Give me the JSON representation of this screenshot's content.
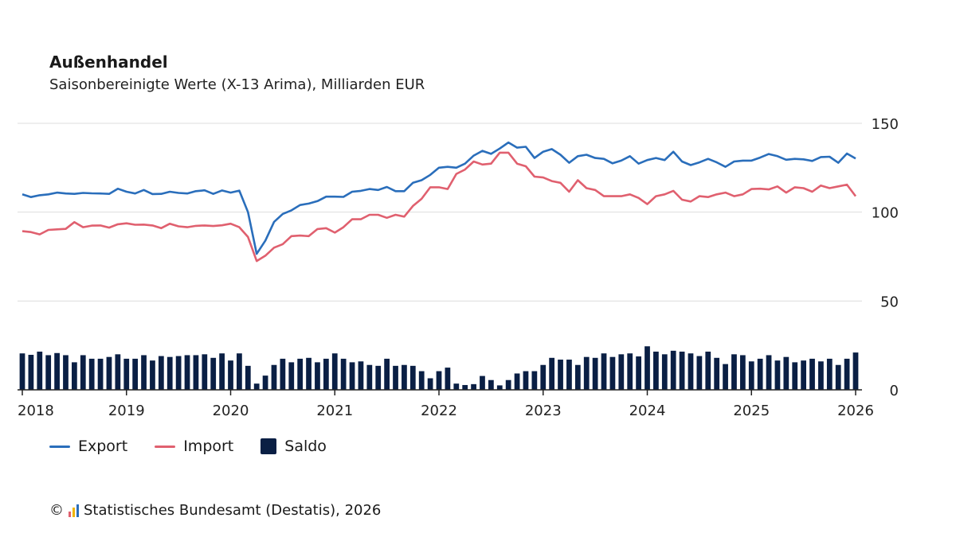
{
  "title": "Außenhandel",
  "subtitle": "Saisonbereinigte Werte (X-13 Arima), Milliarden EUR",
  "legend": {
    "export": "Export",
    "import": "Import",
    "saldo": "Saldo"
  },
  "footer": {
    "copyright": "©",
    "text": "Statistisches Bundesamt (Destatis), 2026"
  },
  "colors": {
    "export": "#2a6ebb",
    "import": "#e0606f",
    "saldo": "#0a1f44",
    "grid": "#dddddd",
    "axis": "#222222",
    "logo": [
      "#e0606f",
      "#f0b400",
      "#2a6ebb"
    ]
  },
  "chart_data": {
    "type": "line+bar",
    "title": "Außenhandel",
    "subtitle": "Saisonbereinigte Werte (X-13 Arima), Milliarden EUR",
    "x_start": "2018-01",
    "x_end": "2026-01",
    "x_ticks": [
      "2018",
      "2019",
      "2020",
      "2021",
      "2022",
      "2023",
      "2024",
      "2025",
      "2026"
    ],
    "y_ticks": [
      0,
      50,
      100,
      150
    ],
    "ylim": [
      0,
      150
    ],
    "grid": true,
    "y_axis_side": "right",
    "legend_position": "bottom-left",
    "series": [
      {
        "name": "Export",
        "type": "line",
        "values": [
          110,
          108.5,
          109.5,
          110,
          111,
          110.5,
          110.3,
          110.8,
          110.6,
          110.5,
          110.3,
          113.2,
          111.5,
          110.5,
          112.5,
          110.2,
          110.3,
          111.5,
          110.8,
          110.5,
          111.8,
          112.3,
          110.3,
          112.2,
          111,
          112.1,
          100,
          76.5,
          84,
          94.5,
          99,
          101,
          104,
          104.8,
          106.2,
          108.7,
          108.7,
          108.6,
          111.5,
          112,
          113,
          112.5,
          114.2,
          111.8,
          111.8,
          116.5,
          118,
          121,
          125,
          125.5,
          125,
          127.3,
          131.8,
          134.5,
          132.8,
          135.8,
          139.2,
          136.3,
          136.8,
          130.5,
          134,
          135.5,
          132.3,
          127.8,
          131.5,
          132.3,
          130.5,
          130,
          127.5,
          129,
          131.5,
          127.3,
          129.3,
          130.5,
          129.3,
          134,
          128.5,
          126.5,
          128,
          130,
          128,
          125.5,
          128.5,
          129,
          129,
          130.7,
          132.7,
          131.5,
          129.5,
          130,
          129.7,
          128.8,
          131,
          131.2,
          127.8,
          133,
          130.2
        ]
      },
      {
        "name": "Import",
        "type": "line",
        "values": [
          89.3,
          88.8,
          87.5,
          90,
          90.3,
          90.6,
          94.4,
          91.5,
          92.4,
          92.5,
          91.3,
          93.2,
          93.7,
          92.9,
          93,
          92.5,
          91,
          93.5,
          92,
          91.5,
          92.3,
          92.5,
          92.2,
          92.6,
          93.5,
          91.5,
          86,
          72.5,
          75.5,
          80,
          82,
          86.5,
          86.8,
          86.5,
          90.5,
          91,
          88.5,
          91.5,
          96,
          96,
          98.5,
          98.5,
          96.8,
          98.5,
          97.5,
          103.5,
          107.5,
          114,
          114,
          113,
          121.5,
          124,
          128.5,
          126.8,
          127.3,
          133.5,
          133.5,
          127.3,
          125.8,
          120,
          119.5,
          117.5,
          116.5,
          111.5,
          118,
          113.5,
          112.5,
          109,
          109,
          109,
          110,
          108,
          104.5,
          109,
          110,
          112,
          107,
          106,
          109,
          108.5,
          110,
          111,
          109,
          110,
          113,
          113.2,
          112.8,
          114.5,
          111,
          114,
          113.5,
          111.5,
          115,
          113.5,
          114.5,
          115.5,
          109
        ]
      },
      {
        "name": "Saldo",
        "type": "bar",
        "values": [
          20.5,
          19.7,
          21.5,
          19.5,
          20.7,
          19.5,
          15.5,
          19.5,
          17.5,
          17.5,
          18.5,
          20,
          17.5,
          17.5,
          19.5,
          16.5,
          19,
          18.5,
          19,
          19.5,
          19.5,
          20,
          18,
          20.5,
          16.5,
          20.5,
          13.5,
          3.5,
          8,
          14,
          17.5,
          15.5,
          17.5,
          18,
          15.5,
          17.5,
          20.5,
          17.5,
          15.5,
          16,
          14,
          13.5,
          17.5,
          13.5,
          14,
          13.5,
          10.5,
          6.5,
          10.5,
          12.5,
          3.5,
          2.7,
          3.2,
          7.8,
          5.5,
          2.5,
          5.5,
          9.2,
          10.5,
          10.5,
          14,
          18,
          17,
          17,
          14,
          18.5,
          18,
          20.5,
          18.5,
          20,
          20.5,
          18.8,
          24.5,
          21.5,
          20,
          22,
          21.5,
          20.5,
          19,
          21.5,
          18,
          14.5,
          20,
          19.5,
          16,
          17.5,
          19.5,
          16.5,
          18.5,
          15.5,
          16.5,
          17.5,
          16,
          17.5,
          14,
          17.5,
          21
        ]
      }
    ]
  }
}
